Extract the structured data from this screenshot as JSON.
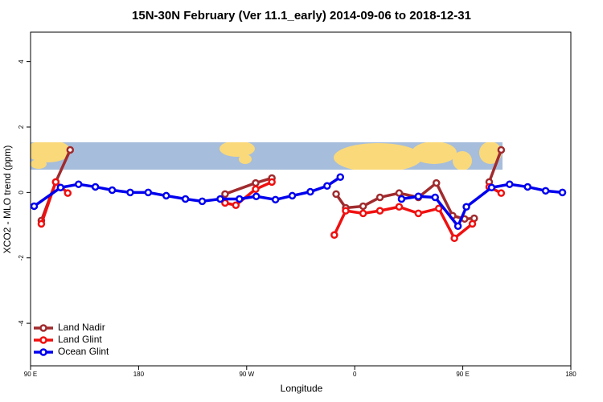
{
  "chart_data": {
    "type": "line",
    "title": "15N-30N February (Ver 11.1_early)   2014-09-06 to 2018-12-31",
    "xlabel": "Longitude",
    "ylabel": "XCO2 - MLO trend (ppm)",
    "xlim": [
      90,
      540
    ],
    "xticks": [
      {
        "value": 90,
        "label": "90 E"
      },
      180,
      {
        "value": 270,
        "label": "90 W"
      },
      {
        "value": 360,
        "label": "0"
      },
      {
        "value": 450,
        "label": "90 E"
      },
      {
        "value": 540,
        "label": "180"
      }
    ],
    "ylim": [
      -5.3,
      4.9
    ],
    "yticks": [
      -4,
      -2,
      0,
      2,
      4
    ],
    "legend": "bottom-left",
    "series": [
      {
        "name": "Land Nadir",
        "color": "#a02b2e",
        "x": [
          99,
          111,
          123,
          null,
          252,
          277.5,
          291,
          null,
          344.5,
          352.5,
          367,
          381,
          397,
          413,
          428,
          441.5,
          451.5,
          459.5,
          null,
          472,
          482
        ],
        "values": [
          -0.86,
          0.32,
          1.3,
          null,
          -0.05,
          0.29,
          0.44,
          null,
          -0.05,
          -0.47,
          -0.42,
          -0.15,
          -0.02,
          -0.15,
          0.29,
          -0.71,
          -0.81,
          -0.79,
          null,
          0.32,
          1.3
        ]
      },
      {
        "name": "Land Glint",
        "color": "#f01010",
        "x": [
          99,
          111,
          121,
          null,
          252,
          261,
          277.5,
          291,
          null,
          343,
          352.5,
          367,
          381,
          397,
          413,
          430,
          443,
          458,
          null,
          472,
          482
        ],
        "values": [
          -0.96,
          0.32,
          -0.02,
          null,
          -0.32,
          -0.39,
          0.1,
          0.32,
          null,
          -1.3,
          -0.56,
          -0.64,
          -0.56,
          -0.44,
          -0.64,
          -0.49,
          -1.4,
          -0.96,
          null,
          0.17,
          -0.02
        ]
      },
      {
        "name": "Ocean Glint",
        "color": "#0000ee",
        "x": [
          93,
          115,
          130,
          144,
          158,
          173,
          188,
          203,
          219,
          233,
          248,
          264,
          278,
          294,
          308,
          323,
          337,
          348,
          null,
          399,
          413,
          427,
          446,
          453,
          474,
          489,
          504,
          519,
          533
        ],
        "values": [
          -0.42,
          0.15,
          0.25,
          0.17,
          0.07,
          0,
          0,
          -0.1,
          -0.2,
          -0.27,
          -0.2,
          -0.2,
          -0.12,
          -0.22,
          -0.1,
          0.02,
          0.2,
          0.47,
          null,
          -0.2,
          -0.12,
          -0.15,
          -1.03,
          -0.44,
          0.15,
          0.25,
          0.17,
          0.05,
          0
        ]
      }
    ]
  }
}
